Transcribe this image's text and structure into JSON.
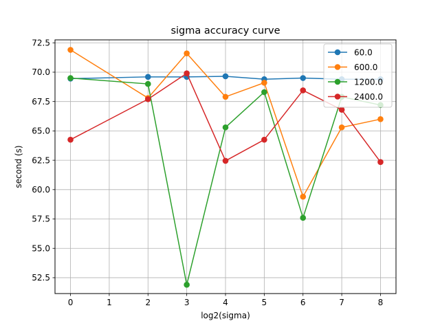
{
  "chart_data": {
    "type": "line",
    "title": "sigma accuracy curve",
    "xlabel": "log2(sigma)",
    "ylabel": "second (s)",
    "xlim": [
      -0.4,
      8.4
    ],
    "ylim": [
      51.15,
      72.75
    ],
    "xticks": [
      0,
      1,
      2,
      3,
      4,
      5,
      6,
      7,
      8
    ],
    "yticks": [
      52.5,
      55.0,
      57.5,
      60.0,
      62.5,
      65.0,
      67.5,
      70.0,
      72.5
    ],
    "grid": true,
    "legend_position": "top-right",
    "x": [
      0,
      2,
      3,
      4,
      5,
      6,
      7,
      8
    ],
    "series": [
      {
        "name": "60.0",
        "color": "#1f77b4",
        "values": [
          69.45,
          69.6,
          69.6,
          69.65,
          69.4,
          69.5,
          69.4,
          69.4
        ]
      },
      {
        "name": "600.0",
        "color": "#ff7f0e",
        "values": [
          71.9,
          67.8,
          71.6,
          67.9,
          69.1,
          59.4,
          65.3,
          66.0
        ]
      },
      {
        "name": "1200.0",
        "color": "#2ca02c",
        "values": [
          69.5,
          69.0,
          51.9,
          65.3,
          68.3,
          57.6,
          67.9,
          67.2
        ]
      },
      {
        "name": "2400.0",
        "color": "#d62728",
        "values": [
          64.25,
          67.7,
          69.9,
          62.45,
          64.25,
          68.45,
          66.8,
          62.35
        ]
      }
    ]
  }
}
